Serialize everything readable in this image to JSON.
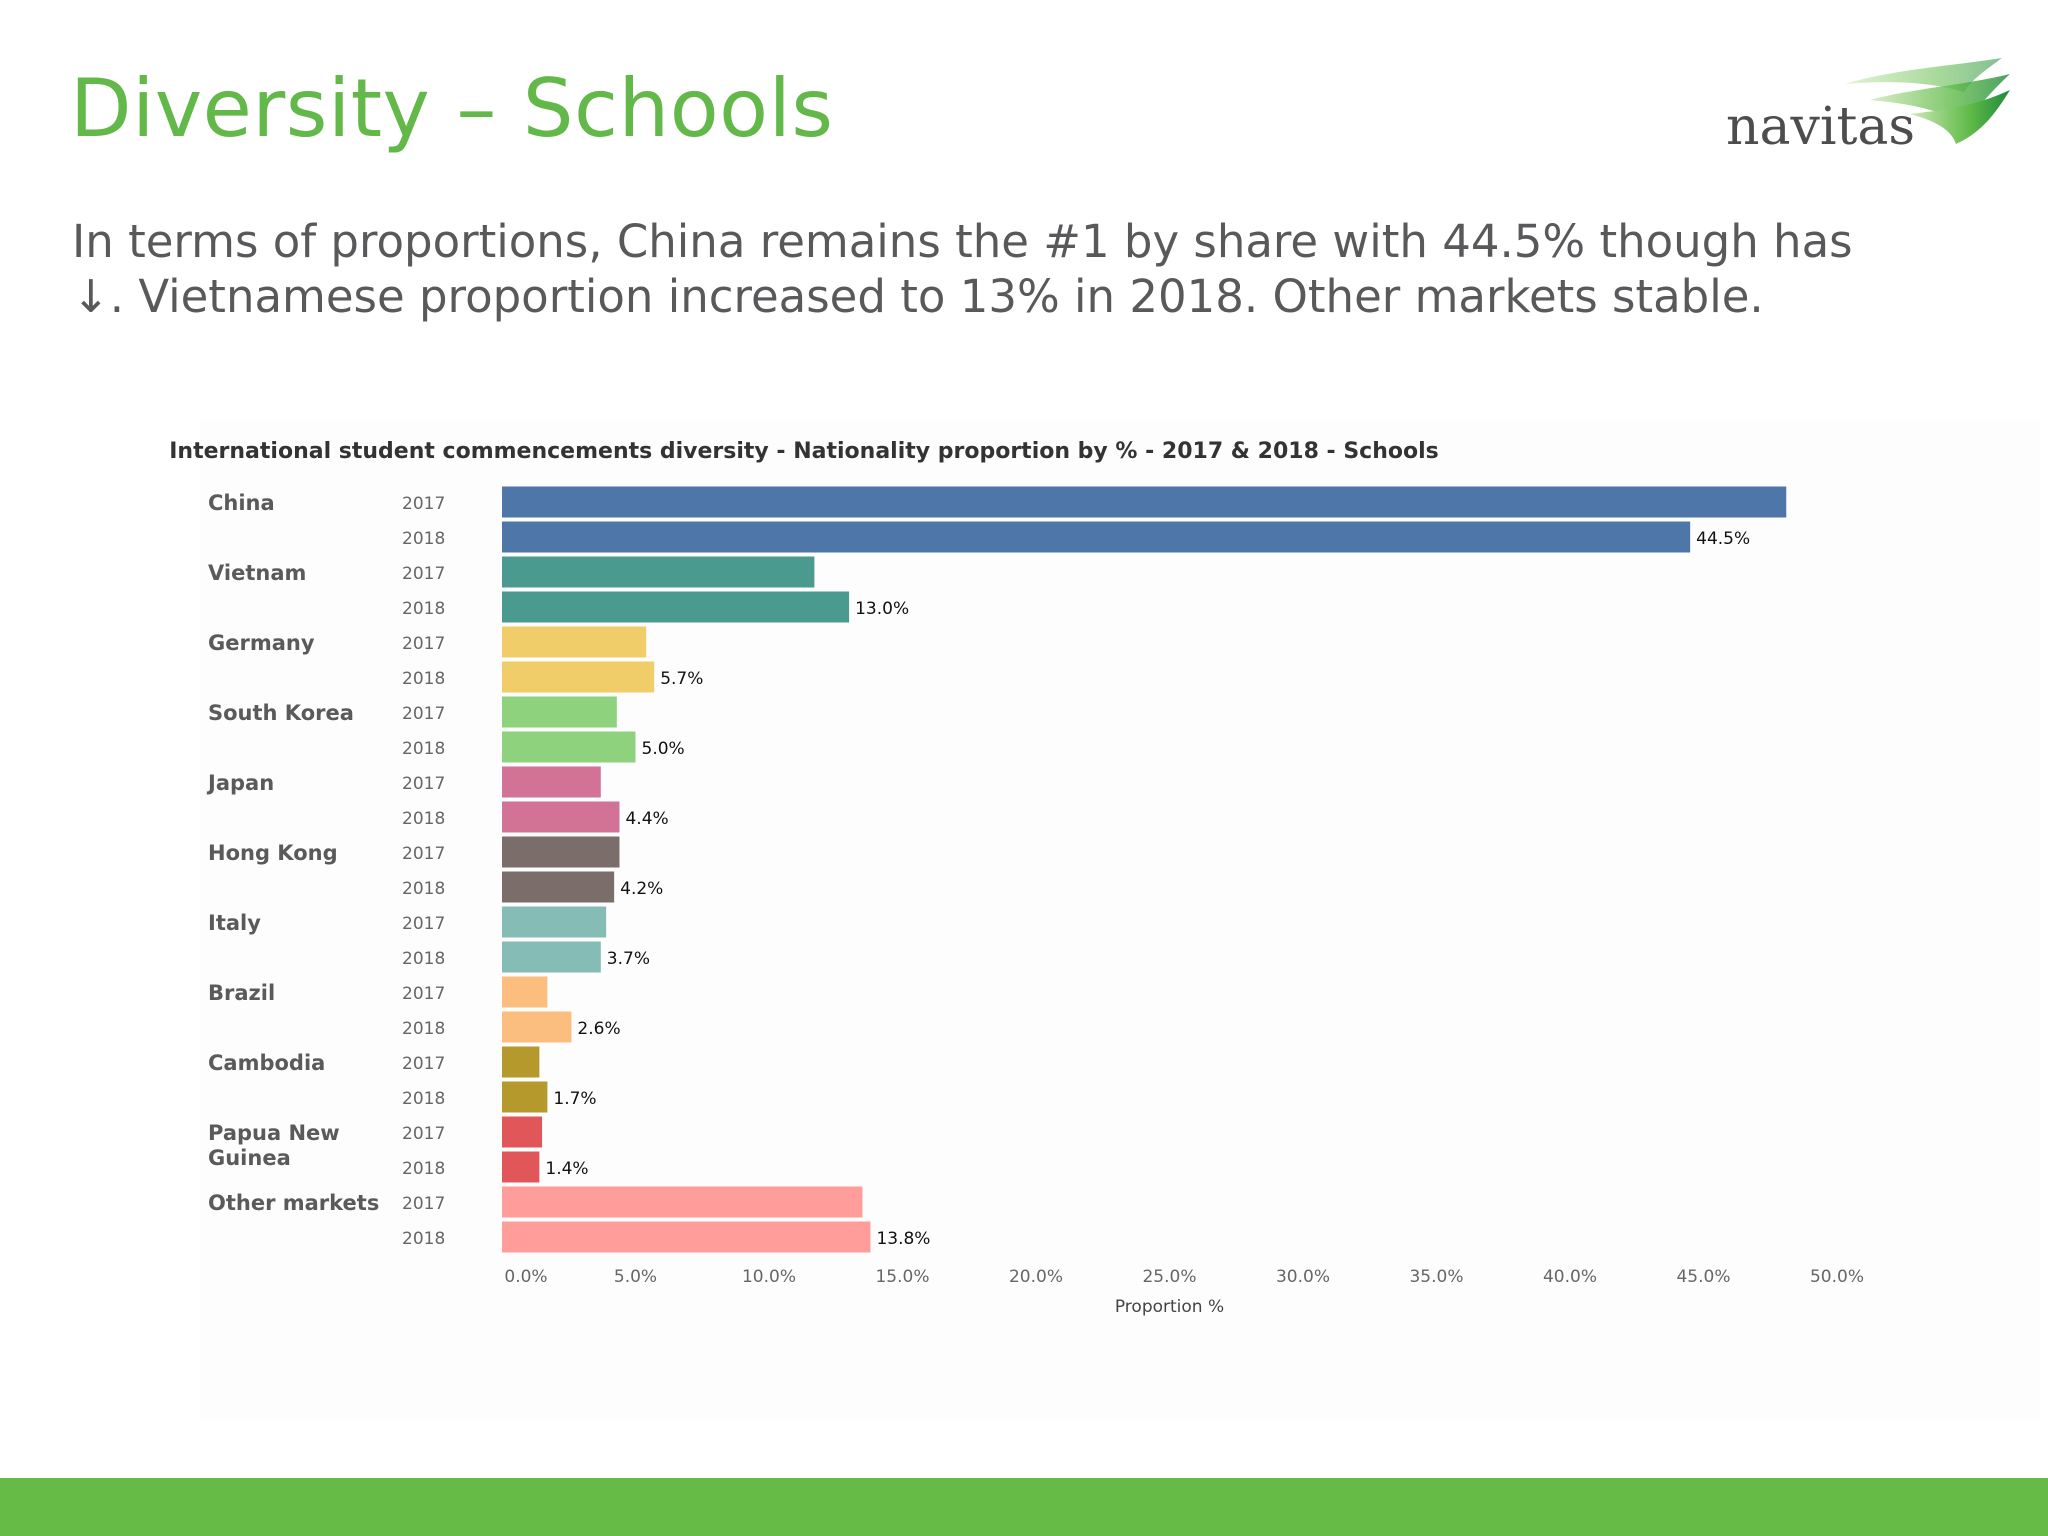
{
  "slide": {
    "title": "Diversity – Schools",
    "subtitle_line1": "In terms of proportions, China remains the #1 by share with 44.5% though has",
    "subtitle_line2": "↓. Vietnamese proportion increased to 13% in 2018. Other markets stable.",
    "logo_text": "navitas",
    "footer_color": "#66bb46",
    "title_color": "#63b84a"
  },
  "chart_data": {
    "type": "bar",
    "orientation": "horizontal",
    "title": "International student commencements diversity -  Nationality proportion by % - 2017 & 2018 - Schools",
    "xlabel": "Proportion %",
    "xlim": [
      0,
      50
    ],
    "xticks": [
      "0.0%",
      "5.0%",
      "10.0%",
      "15.0%",
      "20.0%",
      "25.0%",
      "30.0%",
      "35.0%",
      "40.0%",
      "45.0%",
      "50.0%"
    ],
    "years": [
      "2017",
      "2018"
    ],
    "grid": false,
    "categories": [
      {
        "name": [
          "China"
        ],
        "color": "#4e76a8",
        "values": [
          48.1,
          44.5
        ],
        "label_2018": "44.5%"
      },
      {
        "name": [
          "Vietnam"
        ],
        "color": "#4a9a8f",
        "values": [
          11.7,
          13.0
        ],
        "label_2018": "13.0%"
      },
      {
        "name": [
          "Germany"
        ],
        "color": "#f1cd6a",
        "values": [
          5.4,
          5.7
        ],
        "label_2018": "5.7%"
      },
      {
        "name": [
          "South Korea"
        ],
        "color": "#8fd27d",
        "values": [
          4.3,
          5.0
        ],
        "label_2018": "5.0%"
      },
      {
        "name": [
          "Japan"
        ],
        "color": "#d27396",
        "values": [
          3.7,
          4.4
        ],
        "label_2018": "4.4%"
      },
      {
        "name": [
          "Hong Kong"
        ],
        "color": "#7a6d6a",
        "values": [
          4.4,
          4.2
        ],
        "label_2018": "4.2%"
      },
      {
        "name": [
          "Italy"
        ],
        "color": "#86bcb6",
        "values": [
          3.9,
          3.7
        ],
        "label_2018": "3.7%"
      },
      {
        "name": [
          "Brazil"
        ],
        "color": "#fbbe7e",
        "values": [
          1.7,
          2.6
        ],
        "label_2018": "2.6%"
      },
      {
        "name": [
          "Cambodia"
        ],
        "color": "#b6992d",
        "values": [
          1.4,
          1.7
        ],
        "label_2018": "1.7%"
      },
      {
        "name": [
          "Papua New",
          "Guinea"
        ],
        "color": "#e15759",
        "values": [
          1.5,
          1.4
        ],
        "label_2018": "1.4%"
      },
      {
        "name": [
          "Other markets"
        ],
        "color": "#ff9d9a",
        "values": [
          13.5,
          13.8
        ],
        "label_2018": "13.8%"
      }
    ]
  }
}
